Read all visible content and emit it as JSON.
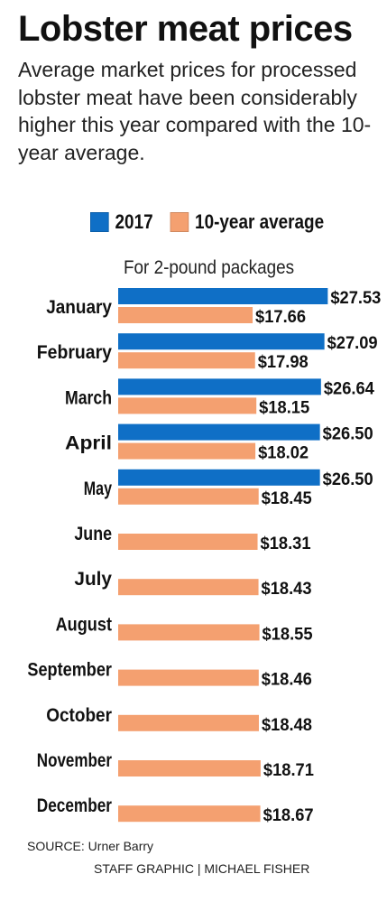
{
  "header": {
    "title": "Lobster meat prices",
    "subtitle": "Average market prices for processed lobster meat have been considerably higher this year compared with the 10-year average."
  },
  "legend": {
    "items": [
      {
        "label": "2017",
        "color": "#0f6fc6"
      },
      {
        "label": "10-year average",
        "color": "#f4a070"
      }
    ]
  },
  "note": "For 2-pound packages",
  "chart_data": {
    "type": "bar",
    "orientation": "horizontal",
    "value_prefix": "$",
    "categories": [
      "January",
      "February",
      "March",
      "April",
      "May",
      "June",
      "July",
      "August",
      "September",
      "October",
      "November",
      "December"
    ],
    "series": [
      {
        "name": "2017",
        "color": "#0f6fc6",
        "values": [
          27.53,
          27.09,
          26.64,
          26.5,
          26.5,
          null,
          null,
          null,
          null,
          null,
          null,
          null
        ]
      },
      {
        "name": "10-year average",
        "color": "#f4a070",
        "values": [
          17.66,
          17.98,
          18.15,
          18.02,
          18.45,
          18.31,
          18.43,
          18.55,
          18.46,
          18.48,
          18.71,
          18.67
        ]
      }
    ],
    "data_labels": true,
    "grid": false,
    "legend_position": "top"
  },
  "footer": {
    "source": "SOURCE: Urner Barry",
    "credit": "STAFF GRAPHIC | MICHAEL FISHER"
  }
}
